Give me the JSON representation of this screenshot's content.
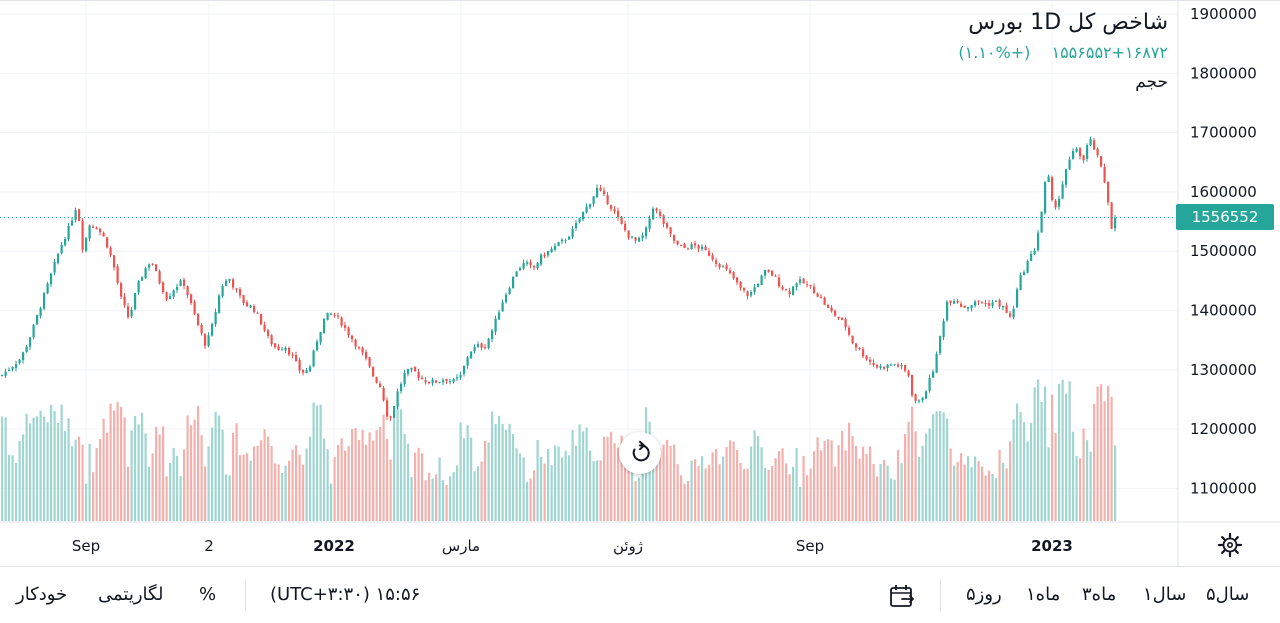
{
  "header": {
    "title": "شاخص کل 1D بورس",
    "last_price": "۱۵۵۶۵۵۲",
    "change": "+۱۶۸۷۲ (+۱.۱۰%)",
    "volume_label": "حجم"
  },
  "price_tag": "1556552",
  "colors": {
    "up": "#26a69a",
    "down": "#ef5350",
    "up_volume": "#9fd6d0",
    "down_volume": "#f4b0ad",
    "grid": "#f0f3fa",
    "text": "#131722"
  },
  "chart_data": {
    "type": "candlestick",
    "y_axis": {
      "min": 1050000,
      "max": 1900000,
      "ticks": [
        1100000,
        1200000,
        1300000,
        1400000,
        1500000,
        1600000,
        1700000,
        1800000,
        1900000
      ],
      "labels": [
        "1100000",
        "1200000",
        "1300000",
        "1400000",
        "1500000",
        "1600000",
        "1700000",
        "1800000",
        "1900000"
      ]
    },
    "x_axis": {
      "labels": [
        "Sep",
        "2",
        "2022",
        "مارس",
        "ژوئن",
        "Sep",
        "2023"
      ]
    },
    "last_price": 1556552,
    "close_path": [
      [
        0,
        1290000
      ],
      [
        10,
        1305000
      ],
      [
        20,
        1320000
      ],
      [
        30,
        1360000
      ],
      [
        40,
        1410000
      ],
      [
        50,
        1460000
      ],
      [
        60,
        1510000
      ],
      [
        68,
        1540000
      ],
      [
        76,
        1580000
      ],
      [
        82,
        1500000
      ],
      [
        88,
        1545000
      ],
      [
        96,
        1540000
      ],
      [
        104,
        1520000
      ],
      [
        112,
        1480000
      ],
      [
        120,
        1420000
      ],
      [
        128,
        1385000
      ],
      [
        136,
        1440000
      ],
      [
        144,
        1470000
      ],
      [
        150,
        1485000
      ],
      [
        158,
        1450000
      ],
      [
        166,
        1420000
      ],
      [
        174,
        1440000
      ],
      [
        182,
        1450000
      ],
      [
        190,
        1410000
      ],
      [
        198,
        1370000
      ],
      [
        205,
        1340000
      ],
      [
        212,
        1380000
      ],
      [
        220,
        1440000
      ],
      [
        228,
        1455000
      ],
      [
        236,
        1430000
      ],
      [
        244,
        1410000
      ],
      [
        252,
        1405000
      ],
      [
        260,
        1380000
      ],
      [
        268,
        1350000
      ],
      [
        276,
        1335000
      ],
      [
        284,
        1340000
      ],
      [
        292,
        1320000
      ],
      [
        300,
        1295000
      ],
      [
        308,
        1300000
      ],
      [
        316,
        1350000
      ],
      [
        324,
        1390000
      ],
      [
        332,
        1395000
      ],
      [
        340,
        1380000
      ],
      [
        348,
        1360000
      ],
      [
        356,
        1340000
      ],
      [
        364,
        1320000
      ],
      [
        372,
        1290000
      ],
      [
        380,
        1270000
      ],
      [
        388,
        1210000
      ],
      [
        396,
        1260000
      ],
      [
        404,
        1295000
      ],
      [
        412,
        1300000
      ],
      [
        420,
        1285000
      ],
      [
        428,
        1280000
      ],
      [
        436,
        1280000
      ],
      [
        444,
        1285000
      ],
      [
        452,
        1280000
      ],
      [
        460,
        1290000
      ],
      [
        468,
        1330000
      ],
      [
        476,
        1340000
      ],
      [
        484,
        1340000
      ],
      [
        492,
        1370000
      ],
      [
        500,
        1410000
      ],
      [
        508,
        1440000
      ],
      [
        516,
        1470000
      ],
      [
        524,
        1480000
      ],
      [
        532,
        1470000
      ],
      [
        540,
        1490000
      ],
      [
        548,
        1500000
      ],
      [
        556,
        1510000
      ],
      [
        564,
        1520000
      ],
      [
        572,
        1535000
      ],
      [
        580,
        1560000
      ],
      [
        588,
        1580000
      ],
      [
        596,
        1605000
      ],
      [
        604,
        1590000
      ],
      [
        612,
        1570000
      ],
      [
        620,
        1545000
      ],
      [
        628,
        1525000
      ],
      [
        636,
        1515000
      ],
      [
        644,
        1530000
      ],
      [
        652,
        1575000
      ],
      [
        660,
        1555000
      ],
      [
        668,
        1530000
      ],
      [
        676,
        1510000
      ],
      [
        684,
        1505000
      ],
      [
        692,
        1510000
      ],
      [
        700,
        1505000
      ],
      [
        708,
        1495000
      ],
      [
        716,
        1480000
      ],
      [
        724,
        1470000
      ],
      [
        732,
        1455000
      ],
      [
        740,
        1435000
      ],
      [
        748,
        1425000
      ],
      [
        756,
        1445000
      ],
      [
        764,
        1465000
      ],
      [
        772,
        1460000
      ],
      [
        780,
        1440000
      ],
      [
        788,
        1430000
      ],
      [
        796,
        1450000
      ],
      [
        804,
        1445000
      ],
      [
        812,
        1435000
      ],
      [
        820,
        1420000
      ],
      [
        828,
        1400000
      ],
      [
        836,
        1390000
      ],
      [
        844,
        1375000
      ],
      [
        852,
        1345000
      ],
      [
        860,
        1330000
      ],
      [
        868,
        1315000
      ],
      [
        876,
        1305000
      ],
      [
        884,
        1305000
      ],
      [
        892,
        1310000
      ],
      [
        900,
        1305000
      ],
      [
        908,
        1290000
      ],
      [
        912,
        1250000
      ],
      [
        918,
        1245000
      ],
      [
        926,
        1270000
      ],
      [
        934,
        1310000
      ],
      [
        940,
        1365000
      ],
      [
        946,
        1415000
      ],
      [
        954,
        1420000
      ],
      [
        962,
        1405000
      ],
      [
        970,
        1410000
      ],
      [
        978,
        1415000
      ],
      [
        986,
        1410000
      ],
      [
        994,
        1415000
      ],
      [
        1002,
        1405000
      ],
      [
        1010,
        1385000
      ],
      [
        1018,
        1450000
      ],
      [
        1026,
        1480000
      ],
      [
        1034,
        1505000
      ],
      [
        1040,
        1560000
      ],
      [
        1046,
        1640000
      ],
      [
        1052,
        1570000
      ],
      [
        1058,
        1590000
      ],
      [
        1064,
        1630000
      ],
      [
        1070,
        1660000
      ],
      [
        1076,
        1675000
      ],
      [
        1082,
        1650000
      ],
      [
        1088,
        1690000
      ],
      [
        1094,
        1670000
      ],
      [
        1100,
        1640000
      ],
      [
        1106,
        1600000
      ],
      [
        1110,
        1540000
      ],
      [
        1115,
        1557000
      ]
    ]
  },
  "bottom": {
    "ranges": [
      "۵سال",
      "۱سال",
      "۳ماه",
      "۱ماه",
      "۵روز"
    ],
    "timezone": "(UTC+۳:۳۰) ۱۵:۵۶",
    "percent": "%",
    "log": "لگاریتمی",
    "auto": "خودکار"
  }
}
